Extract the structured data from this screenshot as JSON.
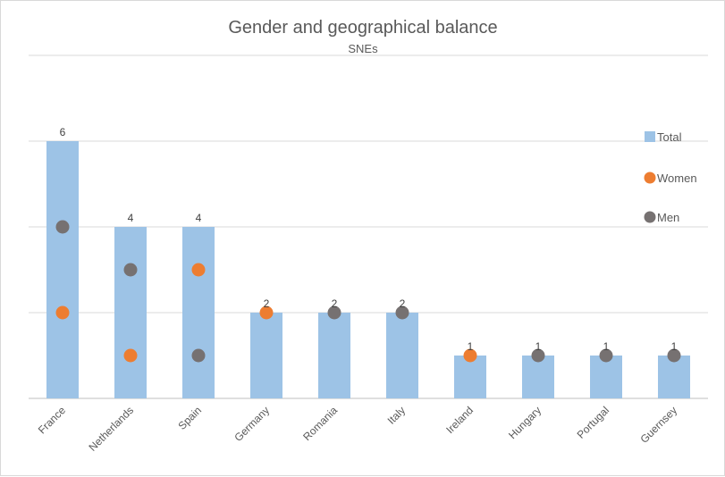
{
  "chart_data": {
    "type": "bar",
    "title": "Gender and geographical balance",
    "subtitle": "SNEs",
    "categories": [
      "France",
      "Netherlands",
      "Spain",
      "Germany",
      "Romania",
      "Italy",
      "Ireland",
      "Hungary",
      "Portugal",
      "Guernsey"
    ],
    "series": [
      {
        "name": "Total",
        "kind": "bar",
        "color": "#9dc3e6",
        "values": [
          6,
          4,
          4,
          2,
          2,
          2,
          1,
          1,
          1,
          1
        ]
      },
      {
        "name": "Women",
        "kind": "marker",
        "color": "#ed7d31",
        "values": [
          2,
          1,
          3,
          2,
          0,
          0,
          1,
          0,
          0,
          0
        ]
      },
      {
        "name": "Men",
        "kind": "marker",
        "color": "#767171",
        "values": [
          4,
          3,
          1,
          0,
          2,
          2,
          0,
          1,
          1,
          1
        ]
      }
    ],
    "ylim": [
      0,
      8
    ],
    "gridlines": [
      0,
      2,
      4,
      6,
      8
    ],
    "grid": true,
    "data_labels": true,
    "legend_position": "right"
  }
}
